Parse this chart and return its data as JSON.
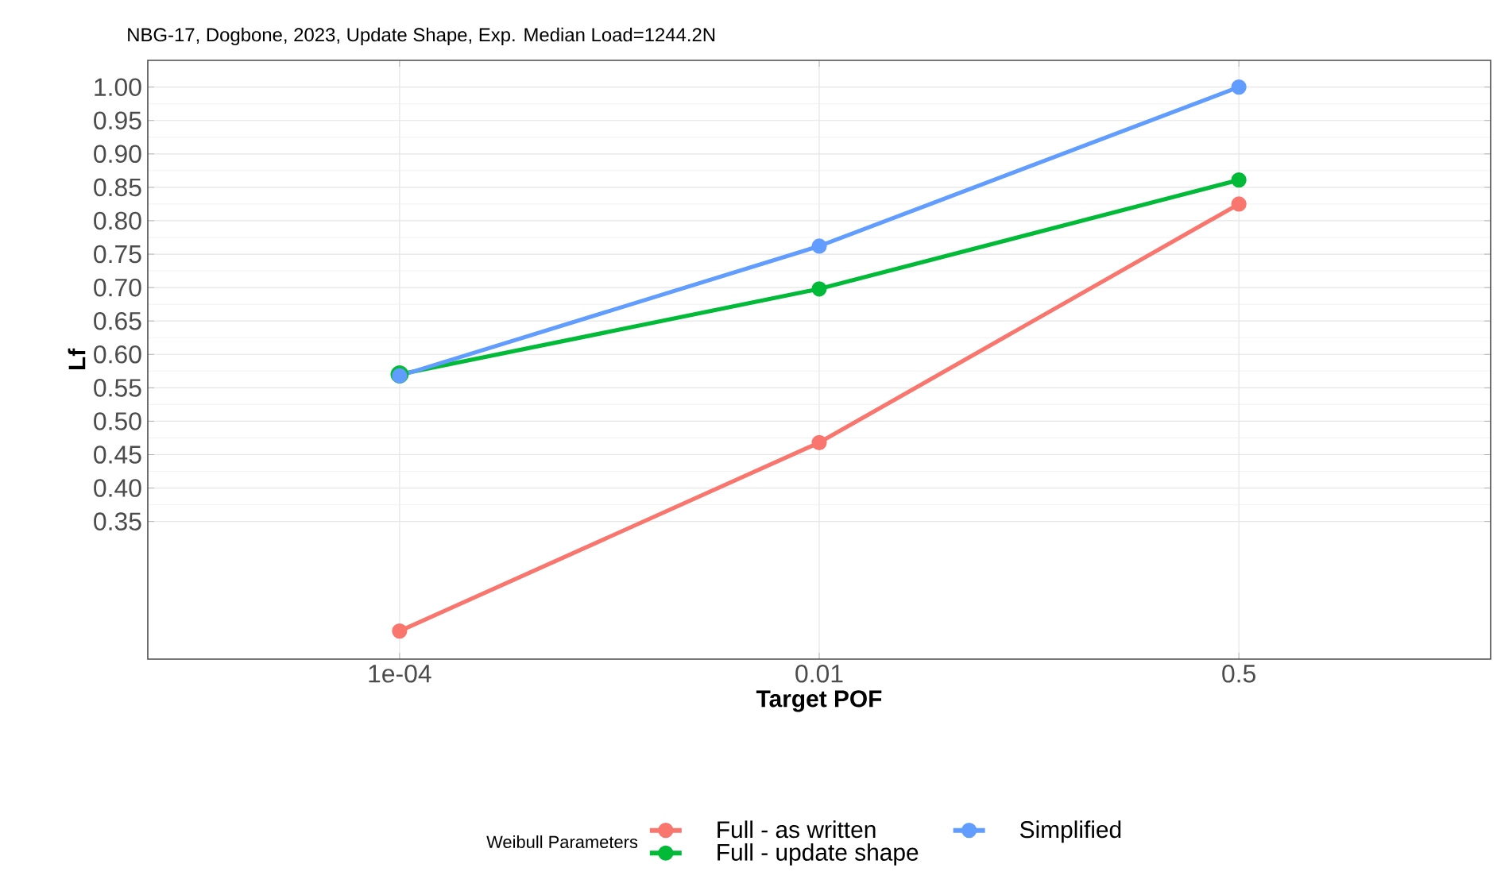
{
  "chart_data": {
    "type": "line",
    "title": "NBG-17, Dogbone, 2023, Update Shape, Exp. Median Load=1244.2N",
    "xlabel": "Target POF",
    "ylabel": "Lf",
    "legend_title": "Weibull Parameters",
    "categories": [
      "1e-04",
      "0.01",
      "0.5"
    ],
    "series": [
      {
        "name": "Full - as written",
        "color": "#f8766d",
        "values": [
          0.186,
          0.468,
          0.825
        ]
      },
      {
        "name": "Full - update shape",
        "color": "#00ba38",
        "values": [
          0.57,
          0.698,
          0.861
        ]
      },
      {
        "name": "Simplified",
        "color": "#619cff",
        "values": [
          0.568,
          0.762,
          1.0
        ]
      }
    ],
    "ylim": [
      0.144,
      1.04
    ],
    "yticks": [
      0.35,
      {
        "value": 0.4,
        "label": "0.40"
      },
      0.45,
      {
        "value": 0.5,
        "label": "0.50"
      },
      0.55,
      {
        "value": 0.6,
        "label": "0.60"
      },
      0.65,
      {
        "value": 0.7,
        "label": "0.70"
      },
      0.75,
      {
        "value": 0.8,
        "label": "0.80"
      },
      0.85,
      {
        "value": 0.9,
        "label": "0.90"
      },
      0.95,
      {
        "value": 1.0,
        "label": "1.00"
      }
    ],
    "grid": true,
    "legend": "bottom",
    "marker": "circle",
    "line_style": "solid"
  }
}
